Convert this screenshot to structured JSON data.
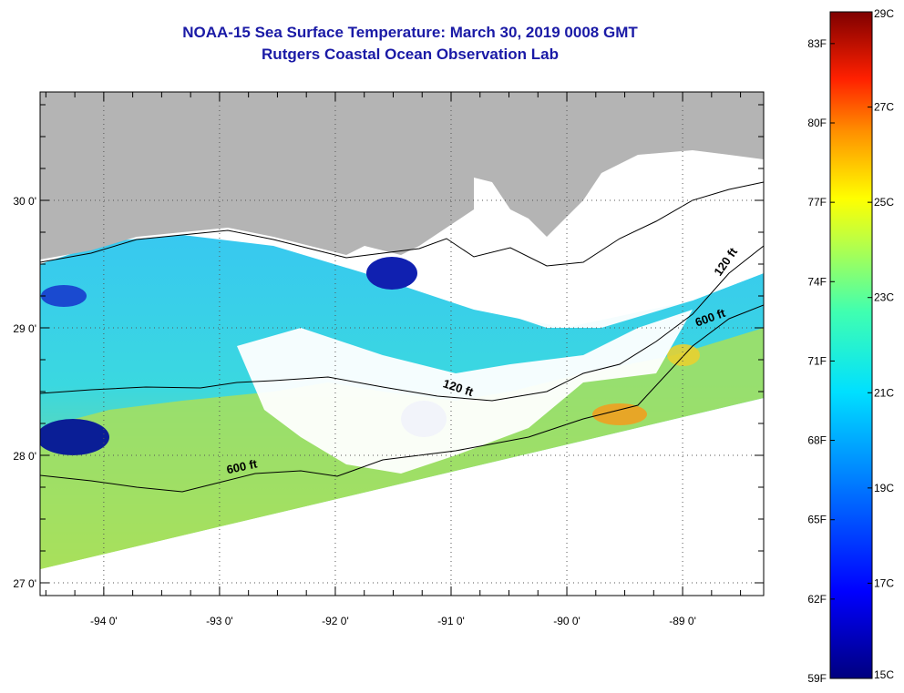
{
  "title": "NOAA-15 Sea Surface Temperature:  March 30, 2019 0008 GMT",
  "subtitle": "Rutgers Coastal Ocean Observation Lab",
  "map": {
    "lon_range": [
      -94.55,
      -88.3
    ],
    "lat_range": [
      26.9,
      30.85
    ],
    "lon_ticks": [
      {
        "value": -94,
        "label": "-94 0'"
      },
      {
        "value": -93,
        "label": "-93 0'"
      },
      {
        "value": -92,
        "label": "-92 0'"
      },
      {
        "value": -91,
        "label": "-91 0'"
      },
      {
        "value": -90,
        "label": "-90 0'"
      },
      {
        "value": -89,
        "label": "-89 0'"
      }
    ],
    "lat_ticks": [
      {
        "value": 30,
        "label": "30 0'"
      },
      {
        "value": 29,
        "label": "29 0'"
      },
      {
        "value": 28,
        "label": "28 0'"
      },
      {
        "value": 27,
        "label": "27 0'"
      }
    ],
    "grid": true,
    "contour_labels": [
      {
        "text": "120 ft",
        "lon": -90.95,
        "lat": 28.5
      },
      {
        "text": "600 ft",
        "lon": -92.8,
        "lat": 27.88
      },
      {
        "text": "120 ft",
        "lon": -88.6,
        "lat": 29.5
      },
      {
        "text": "600 ft",
        "lon": -88.75,
        "lat": 29.05
      }
    ],
    "colors": {
      "land": "#b4b4b4",
      "cloud": "#ffffff",
      "warm_sst": "#a8e05a",
      "mid_sst": "#3ad2e6",
      "cool_sst": "#1e64dc",
      "cold_sst": "#0a1e96"
    }
  },
  "colorbar": {
    "celsius_labels": [
      "29C",
      "27C",
      "25C",
      "23C",
      "21C",
      "19C",
      "17C",
      "15C"
    ],
    "celsius_values": [
      29,
      27,
      25,
      23,
      21,
      19,
      17,
      15
    ],
    "fahrenheit_labels": [
      "83F",
      "80F",
      "77F",
      "74F",
      "71F",
      "68F",
      "65F",
      "62F",
      "59F"
    ],
    "fahrenheit_values": [
      83,
      80,
      77,
      74,
      71,
      68,
      65,
      62,
      59
    ],
    "range_c": [
      15,
      29
    ]
  }
}
